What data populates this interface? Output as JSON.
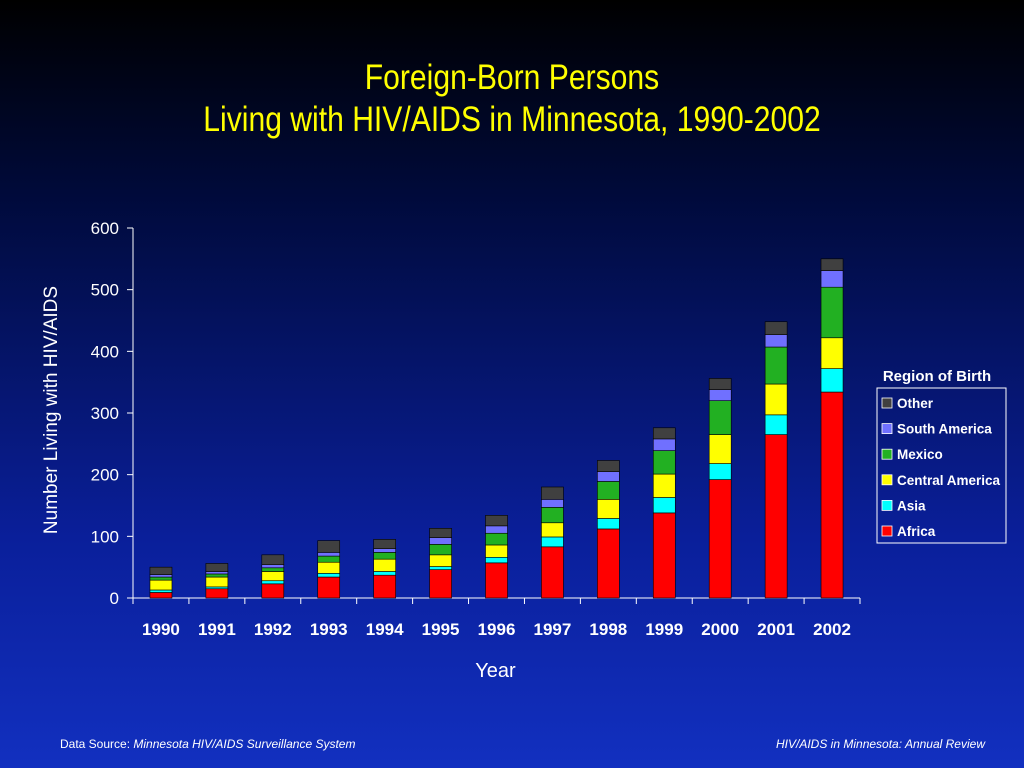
{
  "title_line1": "Foreign-Born Persons",
  "title_line2": "Living with HIV/AIDS in Minnesota, 1990-2002",
  "footer": {
    "source_label": "Data Source:",
    "source_value": "Minnesota HIV/AIDS Surveillance System",
    "right": "HIV/AIDS in Minnesota: Annual Review"
  },
  "colors": {
    "title": "#ffff00",
    "Africa": "#ff0000",
    "Asia": "#00ffff",
    "Central America": "#ffff00",
    "Mexico": "#22b022",
    "South America": "#7070ff",
    "Other": "#404040"
  },
  "chart_data": {
    "type": "bar",
    "stacked": true,
    "xlabel": "Year",
    "ylabel": "Number Living with HIV/AIDS",
    "ylim": [
      0,
      600
    ],
    "yticks": [
      0,
      100,
      200,
      300,
      400,
      500,
      600
    ],
    "grid": false,
    "legend_title": "Region of Birth",
    "legend_position": "right",
    "categories": [
      "1990",
      "1991",
      "1992",
      "1993",
      "1994",
      "1995",
      "1996",
      "1997",
      "1998",
      "1999",
      "2000",
      "2001",
      "2002"
    ],
    "series": [
      {
        "name": "Africa",
        "values": [
          9,
          15,
          23,
          34,
          37,
          46,
          57,
          83,
          112,
          138,
          192,
          265,
          334
        ]
      },
      {
        "name": "Asia",
        "values": [
          4,
          3,
          5,
          6,
          6,
          5,
          9,
          16,
          17,
          25,
          26,
          32,
          38
        ]
      },
      {
        "name": "Central America",
        "values": [
          16,
          16,
          15,
          18,
          20,
          19,
          20,
          23,
          31,
          38,
          47,
          50,
          50
        ]
      },
      {
        "name": "Mexico",
        "values": [
          5,
          5,
          6,
          10,
          11,
          17,
          19,
          25,
          29,
          38,
          55,
          60,
          82
        ]
      },
      {
        "name": "South America",
        "values": [
          4,
          4,
          5,
          6,
          6,
          11,
          12,
          13,
          16,
          19,
          18,
          20,
          27
        ]
      },
      {
        "name": "Other",
        "values": [
          12,
          13,
          16,
          19,
          15,
          15,
          17,
          20,
          18,
          18,
          18,
          21,
          19
        ]
      }
    ]
  }
}
